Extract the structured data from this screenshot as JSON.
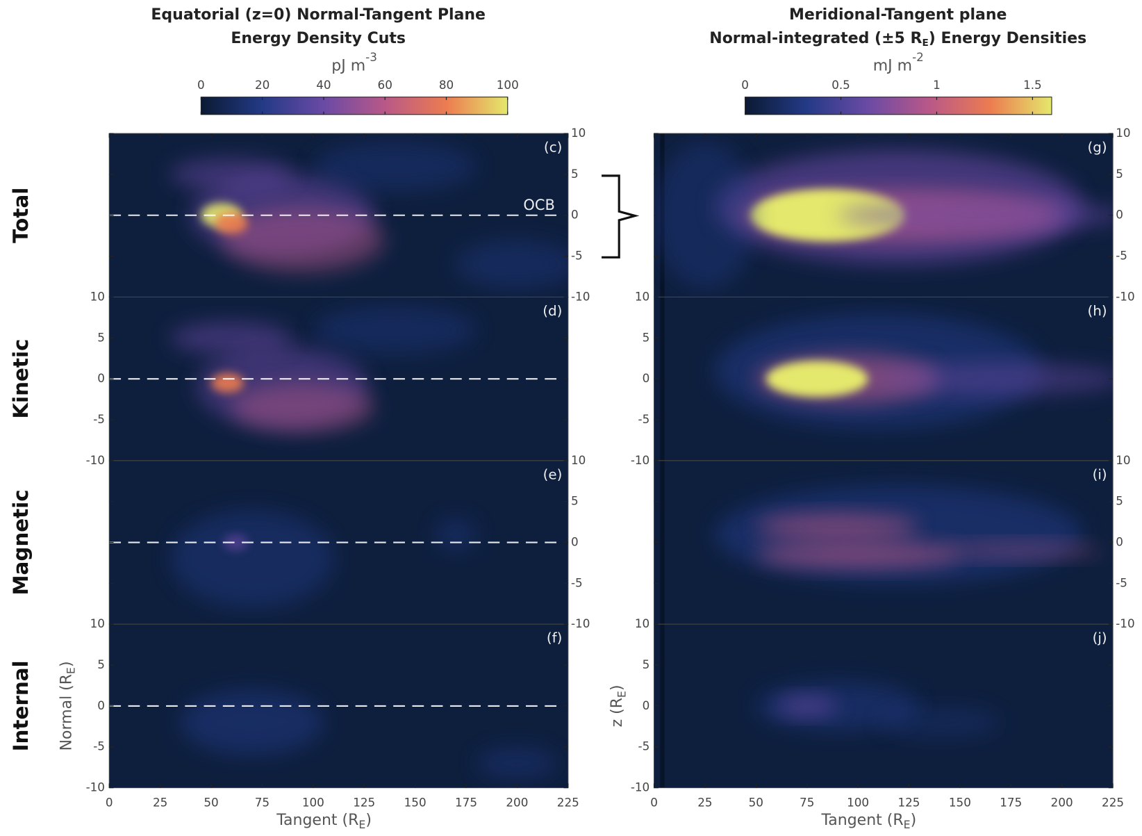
{
  "chart_data": [
    {
      "type": "heatmap",
      "title": "Equatorial (z=0) Normal-Tangent Plane",
      "subtitle": [
        "Energy Density Cuts"
      ],
      "colorbar_label": "pJ m",
      "colorbar_label_sup": "-3",
      "colorbar_lim": [
        0,
        100
      ],
      "colorbar_ticks": [
        0,
        20,
        40,
        60,
        80,
        100
      ],
      "colormap": [
        "#0b1a33",
        "#233a86",
        "#6a4aa5",
        "#b95888",
        "#ec7c50",
        "#e4e86c"
      ],
      "xlabel": [
        "Tangent (R",
        "E",
        ")"
      ],
      "ylabel": [
        "Normal (R",
        "E",
        ")"
      ],
      "xlim": [
        0,
        225
      ],
      "xticks": [
        0,
        25,
        50,
        75,
        100,
        125,
        150,
        175,
        200,
        225
      ],
      "ylim": [
        -10,
        10
      ],
      "yticks": [
        -10,
        -5,
        0,
        5,
        10
      ],
      "panels": [
        "(c)",
        "(d)",
        "(e)",
        "(f)"
      ],
      "rows": [
        "Total",
        "Kinetic",
        "Magnetic",
        "Internal"
      ],
      "annotation": "OCB"
    },
    {
      "type": "heatmap",
      "title": "Meridional-Tangent plane",
      "subtitle": [
        "Normal-integrated (±5 R",
        "E",
        ") Energy Densities"
      ],
      "colorbar_label": "mJ m",
      "colorbar_label_sup": "-2",
      "colorbar_lim": [
        0,
        1.6
      ],
      "colorbar_ticks": [
        0,
        0.5,
        1,
        1.5
      ],
      "colormap": [
        "#0b1a33",
        "#233a86",
        "#6a4aa5",
        "#b95888",
        "#ec7c50",
        "#e4e86c"
      ],
      "xlabel": [
        "Tangent (R",
        "E",
        ")"
      ],
      "ylabel": [
        "z (R",
        "E",
        ")"
      ],
      "xlim": [
        0,
        225
      ],
      "xticks": [
        0,
        25,
        50,
        75,
        100,
        125,
        150,
        175,
        200,
        225
      ],
      "ylim": [
        -10,
        10
      ],
      "yticks": [
        -10,
        -5,
        0,
        5,
        10
      ],
      "panels": [
        "(g)",
        "(h)",
        "(i)",
        "(j)"
      ]
    }
  ]
}
